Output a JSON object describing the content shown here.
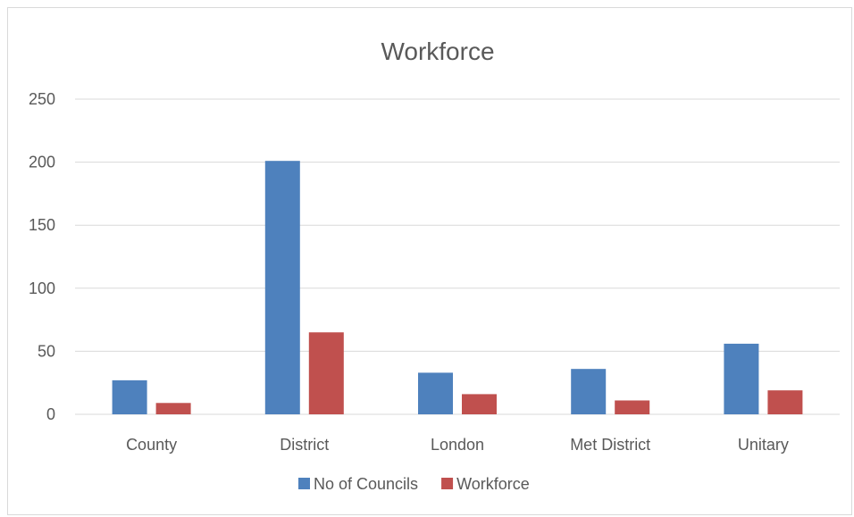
{
  "chart_data": {
    "type": "bar",
    "title": "Workforce",
    "xlabel": "",
    "ylabel": "",
    "categories": [
      "County",
      "District",
      "London",
      "Met District",
      "Unitary"
    ],
    "series": [
      {
        "name": "No of Councils",
        "values": [
          27,
          201,
          33,
          36,
          56
        ],
        "color": "#4e81bd"
      },
      {
        "name": "Workforce",
        "values": [
          9,
          65,
          16,
          11,
          19
        ],
        "color": "#c0504e"
      }
    ],
    "ylim": [
      0,
      250
    ],
    "yticks": [
      "0",
      "50",
      "100",
      "150",
      "200",
      "250"
    ],
    "ytick_values": [
      0,
      50,
      100,
      150,
      200,
      250
    ],
    "grid": true,
    "legend_position": "bottom"
  },
  "colors": {
    "gridline": "#d9d9d9",
    "axis": "#d9d9d9",
    "text": "#595959"
  }
}
